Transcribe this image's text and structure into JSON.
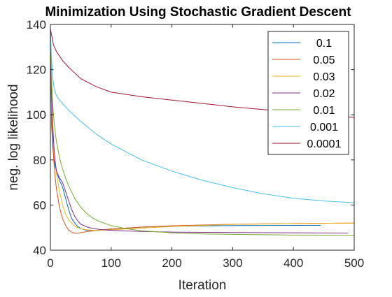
{
  "chart_data": {
    "type": "line",
    "title": "Minimization Using Stochastic Gradient Descent",
    "xlabel": "Iteration",
    "ylabel": "neg. log likelihood",
    "xlim": [
      0,
      500
    ],
    "ylim": [
      40,
      140
    ],
    "xticks": [
      0,
      100,
      200,
      300,
      400,
      500
    ],
    "yticks": [
      40,
      60,
      80,
      100,
      120,
      140
    ],
    "grid": false,
    "legend_position": "top-right",
    "series": [
      {
        "name": "0.1",
        "color": "#0072BD",
        "x": [
          0,
          2,
          4,
          6,
          8,
          10,
          15,
          20,
          25,
          30,
          35,
          40,
          45,
          50,
          60,
          70,
          80,
          100,
          150,
          200,
          300,
          400,
          445
        ],
        "y": [
          138,
          95,
          85,
          80,
          77,
          75,
          71,
          68,
          63,
          58,
          54,
          52,
          50.5,
          49.5,
          48.8,
          48.6,
          48.8,
          49.3,
          50.2,
          50.6,
          50.9,
          51.0,
          51.0
        ]
      },
      {
        "name": "0.05",
        "color": "#D95319",
        "x": [
          0,
          2,
          4,
          6,
          8,
          10,
          15,
          20,
          25,
          30,
          35,
          40,
          45,
          50,
          60,
          70,
          80,
          100,
          150,
          200,
          300,
          400,
          500
        ],
        "y": [
          138,
          100,
          88,
          78,
          72,
          67,
          59,
          54,
          51,
          49,
          48,
          47.5,
          47.5,
          47.8,
          48.2,
          48.6,
          48.9,
          49.4,
          50.2,
          50.8,
          51.5,
          51.8,
          52.0
        ]
      },
      {
        "name": "0.03",
        "color": "#EDB120",
        "x": [
          0,
          2,
          4,
          6,
          8,
          10,
          15,
          20,
          25,
          30,
          35,
          40,
          45,
          50,
          60,
          70,
          80,
          100,
          150,
          200,
          300,
          400,
          500
        ],
        "y": [
          138,
          105,
          93,
          85,
          79,
          74,
          66,
          60,
          56,
          53.5,
          52,
          50.8,
          50,
          49.5,
          49,
          48.8,
          48.8,
          49,
          49.8,
          50.5,
          51.4,
          51.8,
          52.0
        ]
      },
      {
        "name": "0.02",
        "color": "#7E2F8E",
        "x": [
          0,
          2,
          4,
          6,
          8,
          10,
          15,
          20,
          25,
          30,
          35,
          40,
          45,
          50,
          60,
          70,
          80,
          100,
          150,
          200,
          300,
          400,
          490
        ],
        "y": [
          138,
          108,
          95,
          85,
          79,
          75,
          72,
          70,
          66,
          62,
          58,
          55,
          53,
          51.5,
          50.3,
          49.6,
          49.2,
          48.8,
          48.3,
          48,
          47.8,
          47.7,
          47.6
        ]
      },
      {
        "name": "0.01",
        "color": "#77AC30",
        "x": [
          0,
          2,
          4,
          6,
          8,
          10,
          15,
          20,
          25,
          30,
          40,
          50,
          60,
          70,
          80,
          100,
          125,
          150,
          200,
          250,
          300,
          400,
          500
        ],
        "y": [
          138,
          115,
          104,
          97,
          92,
          88,
          81,
          76,
          72,
          68.5,
          63,
          59,
          56.2,
          54.2,
          52.8,
          50.9,
          49.5,
          48.6,
          47.7,
          47.2,
          47,
          46.7,
          46.6
        ]
      },
      {
        "name": "0.001",
        "color": "#4DBEEE",
        "x": [
          0,
          1,
          2,
          3,
          4,
          6,
          8,
          10,
          15,
          20,
          30,
          50,
          75,
          100,
          150,
          200,
          250,
          300,
          350,
          400,
          450,
          500
        ],
        "y": [
          138,
          130,
          124,
          120,
          116,
          112,
          110,
          108.5,
          106.5,
          105,
          102,
          97,
          91.5,
          87,
          80,
          75,
          71,
          67.7,
          65,
          63,
          61.8,
          61
        ]
      },
      {
        "name": "0.0001",
        "color": "#A2142F",
        "x": [
          0,
          5,
          10,
          20,
          30,
          40,
          50,
          75,
          100,
          150,
          200,
          250,
          300,
          350,
          400,
          450,
          500
        ],
        "y": [
          138,
          131,
          128,
          124,
          121,
          118.5,
          116,
          112.5,
          110,
          108,
          106.5,
          105,
          103.5,
          102.3,
          101.2,
          100,
          98.8
        ]
      }
    ]
  }
}
